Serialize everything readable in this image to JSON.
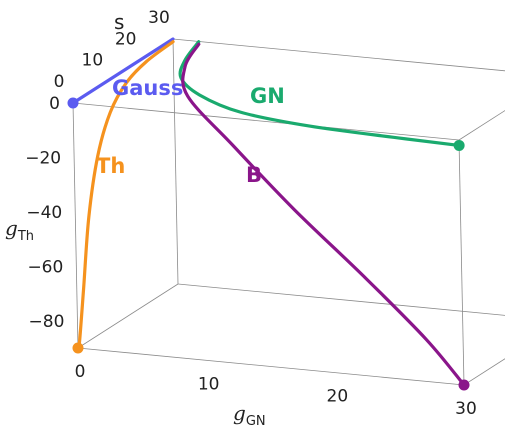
{
  "chart_data": {
    "type": "line",
    "subtype": "3d-parametric",
    "axes": {
      "x": {
        "title": "g",
        "subscript": "GN",
        "ticks": [
          "0",
          "10",
          "20",
          "30"
        ],
        "range": [
          0,
          30
        ]
      },
      "y": {
        "title": "g",
        "subscript": "Th",
        "ticks": [
          "0",
          "−20",
          "−40",
          "−60",
          "−80"
        ],
        "range": [
          -90,
          0
        ]
      },
      "z": {
        "title": "s",
        "ticks": [
          "0",
          "10",
          "20",
          "30"
        ],
        "range": [
          0,
          30
        ]
      }
    },
    "series": [
      {
        "name": "Gauss",
        "color": "#5b5bf0",
        "points": [
          [
            0,
            0,
            0
          ],
          [
            0,
            0,
            30
          ]
        ],
        "end_marker": [
          0,
          0,
          0
        ]
      },
      {
        "name": "Th",
        "color": "#f5921e",
        "points": [
          [
            0,
            -90,
            0
          ],
          [
            0,
            -88,
            0.5
          ],
          [
            0,
            -70,
            2
          ],
          [
            0,
            -45,
            4
          ],
          [
            0,
            -25,
            7
          ],
          [
            0,
            -12,
            11
          ],
          [
            0,
            -5,
            16
          ],
          [
            0,
            -2,
            22
          ],
          [
            0,
            -1,
            30
          ]
        ],
        "end_marker": [
          0,
          -90,
          0
        ]
      },
      {
        "name": "GN",
        "color": "#1aaa6e",
        "points": [
          [
            30,
            -2,
            0
          ],
          [
            25,
            -1.8,
            0.5
          ],
          [
            18,
            -1.5,
            1.5
          ],
          [
            12,
            -1.1,
            4
          ],
          [
            7.5,
            -0.7,
            9
          ],
          [
            4.5,
            -0.4,
            15
          ],
          [
            3,
            -0.2,
            22
          ],
          [
            2,
            -0.1,
            30
          ]
        ],
        "end_marker": [
          30,
          -2,
          0
        ]
      },
      {
        "name": "B",
        "color": "#8a158a",
        "points": [
          [
            30,
            -90,
            0
          ],
          [
            27,
            -75,
            0.5
          ],
          [
            22,
            -55,
            1.5
          ],
          [
            16,
            -35,
            4
          ],
          [
            10,
            -18,
            9
          ],
          [
            5,
            -7,
            15
          ],
          [
            3,
            -2.5,
            22
          ],
          [
            2,
            -1,
            30
          ]
        ],
        "end_marker": [
          30,
          -90,
          0
        ]
      }
    ],
    "grid": false,
    "legend": "none"
  }
}
